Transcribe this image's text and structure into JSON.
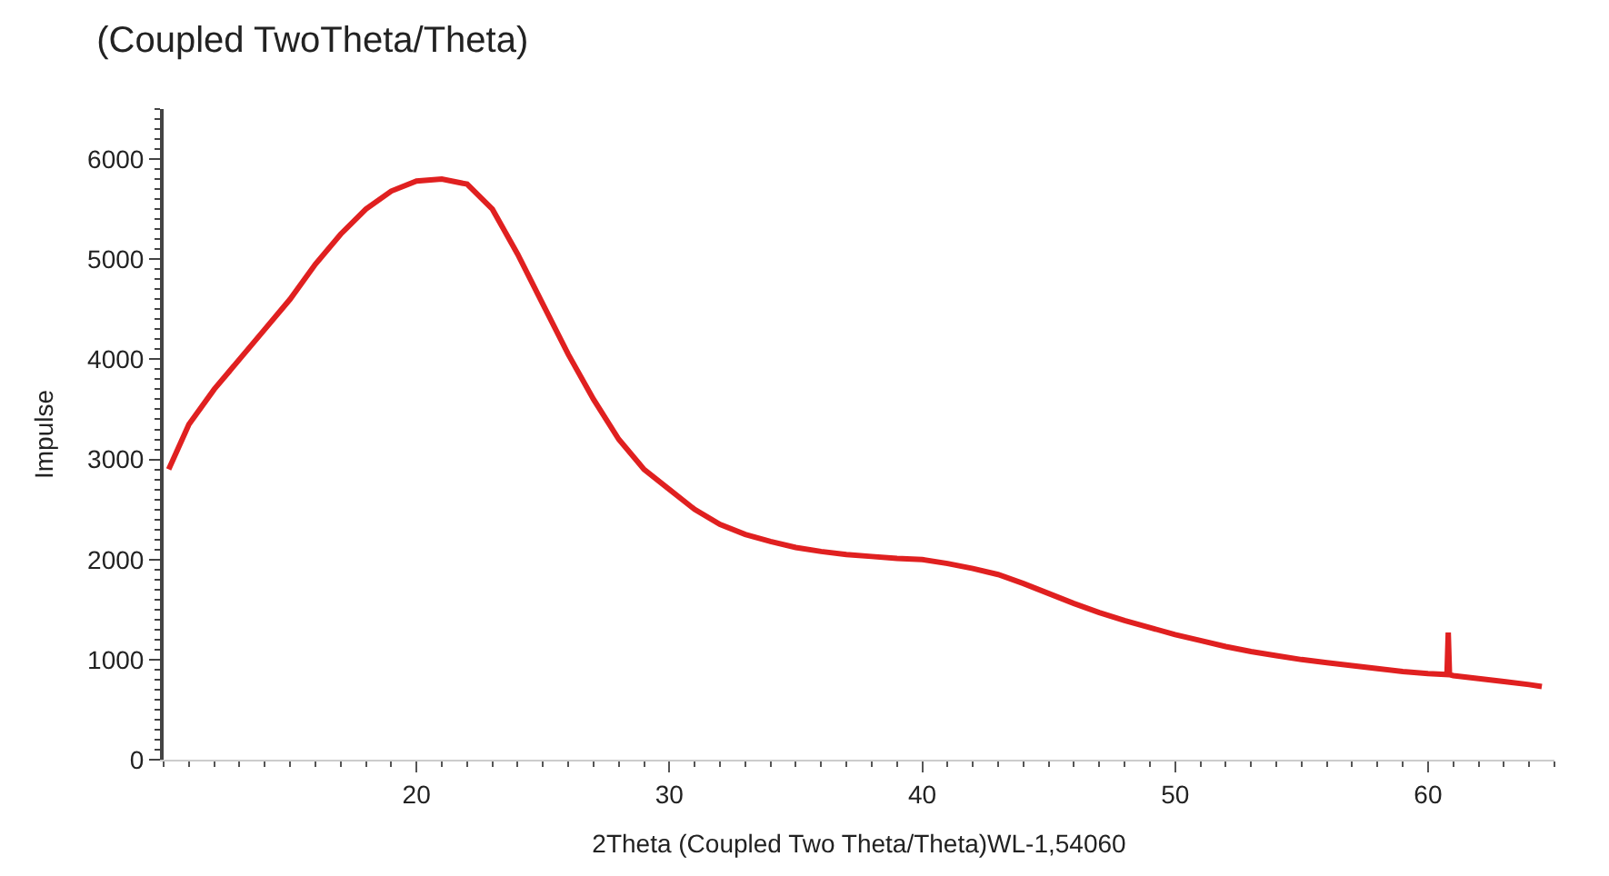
{
  "chart_data": {
    "type": "line",
    "title": "(Coupled TwoTheta/Theta)",
    "xlabel": "2Theta (Coupled Two Theta/Theta)WL-1,54060",
    "ylabel": "Impulse",
    "xlim": [
      10,
      65
    ],
    "xticks": [
      20,
      30,
      40,
      50,
      60
    ],
    "ylim": [
      0,
      6500
    ],
    "yticks": [
      0,
      1000,
      2000,
      3000,
      4000,
      5000,
      6000
    ],
    "marker": "none",
    "line_style": "solid",
    "series": [
      {
        "color": "#e02020",
        "x": [
          10.2,
          11,
          12,
          13,
          14,
          15,
          16,
          17,
          18,
          19,
          20,
          21,
          22,
          23,
          24,
          25,
          26,
          27,
          28,
          29,
          30,
          31,
          32,
          33,
          34,
          35,
          36,
          37,
          38,
          39,
          40,
          41,
          42,
          43,
          44,
          45,
          46,
          47,
          48,
          49,
          50,
          51,
          52,
          53,
          54,
          55,
          56,
          57,
          58,
          59,
          60,
          60.75,
          60.8,
          60.85,
          61,
          62,
          63,
          64,
          64.5
        ],
        "values": [
          2900,
          3350,
          3700,
          4000,
          4300,
          4600,
          4950,
          5250,
          5500,
          5680,
          5780,
          5800,
          5750,
          5500,
          5050,
          4550,
          4050,
          3600,
          3200,
          2900,
          2700,
          2500,
          2350,
          2250,
          2180,
          2120,
          2080,
          2050,
          2030,
          2010,
          2000,
          1960,
          1910,
          1850,
          1760,
          1660,
          1560,
          1470,
          1390,
          1320,
          1250,
          1190,
          1130,
          1080,
          1040,
          1000,
          970,
          940,
          910,
          880,
          860,
          850,
          1270,
          850,
          840,
          810,
          780,
          750,
          730
        ]
      }
    ]
  }
}
